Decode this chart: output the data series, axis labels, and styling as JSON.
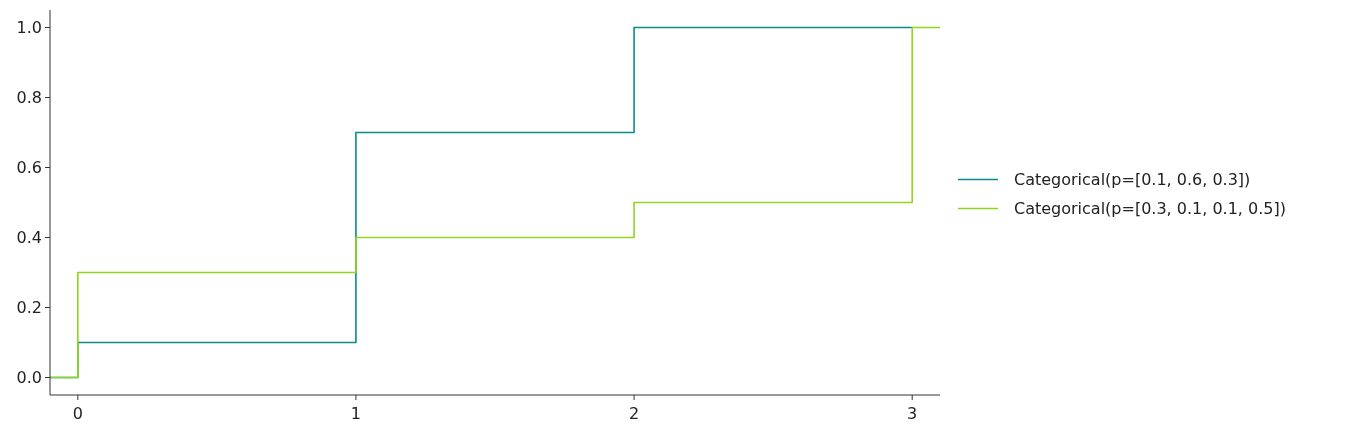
{
  "chart_data": {
    "type": "step",
    "xlim": [
      -0.1,
      3.1
    ],
    "ylim": [
      -0.05,
      1.05
    ],
    "xticks": [
      0,
      1,
      2,
      3
    ],
    "yticks": [
      {
        "value": 0,
        "label": "0.0"
      },
      {
        "value": 0.2,
        "label": "0.2"
      },
      {
        "value": 0.4,
        "label": "0.4"
      },
      {
        "value": 0.6,
        "label": "0.6"
      },
      {
        "value": 0.8,
        "label": "0.8"
      },
      {
        "value": 1,
        "label": "1.0"
      }
    ],
    "grid": false,
    "legend": "right",
    "series": [
      {
        "name": "Categorical(p=[0.1, 0.6, 0.3])",
        "color": "#0a8a8f",
        "x": [
          -0.1,
          0,
          1,
          2,
          3
        ],
        "values": [
          0,
          0.1,
          0.7,
          1.0,
          1.0
        ]
      },
      {
        "name": "Categorical(p=[0.3, 0.1, 0.1, 0.5])",
        "color": "#8fd61c",
        "x": [
          -0.1,
          0,
          1,
          2,
          3,
          3.1
        ],
        "values": [
          0,
          0.3,
          0.4,
          0.5,
          1.0,
          1.0
        ]
      }
    ]
  }
}
